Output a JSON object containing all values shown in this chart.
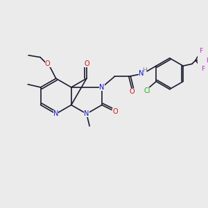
{
  "bg": "#ebebeb",
  "bc": "#1a1a2e",
  "N_color": "#1414cc",
  "O_color": "#cc1414",
  "Cl_color": "#22aa22",
  "F_color": "#cc22cc",
  "H_color": "#777799",
  "lw": 1.2,
  "fs": 7.0,
  "figsize": [
    3.0,
    3.0
  ],
  "dpi": 100,
  "xlim": [
    0,
    10
  ],
  "ylim": [
    0,
    10
  ]
}
